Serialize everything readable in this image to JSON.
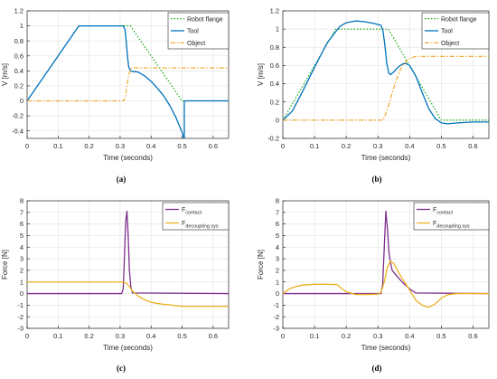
{
  "figure": {
    "captions": [
      "(a)",
      "(b)",
      "(c)",
      "(d)"
    ]
  },
  "colors": {
    "robot_flange": "#00a000",
    "tool": "#0072bd",
    "object": "#f0a020",
    "contact": "#7e2f8e",
    "decoupling": "#edb120",
    "grid": "#e6e6e6",
    "axis": "#262626"
  },
  "chart_data": [
    {
      "id": "a",
      "type": "line",
      "caption": "(a)",
      "xlabel": "Time (seconds)",
      "ylabel": "V [m/s]",
      "xlim": [
        0,
        0.65
      ],
      "ylim": [
        -0.5,
        1.2
      ],
      "xticks": [
        0,
        0.1,
        0.2,
        0.3,
        0.4,
        0.5,
        0.6
      ],
      "xtick_labels": [
        "0",
        "0.1",
        "0.2",
        "0.3",
        "0.4",
        "0.5",
        "0.6"
      ],
      "yticks": [
        -0.4,
        -0.2,
        0,
        0.2,
        0.4,
        0.6,
        0.8,
        1,
        1.2
      ],
      "ytick_labels": [
        "-0.4",
        "-0.2",
        "0",
        "0.2",
        "0.4",
        "0.6",
        "0.8",
        "1",
        "1.2"
      ],
      "grid": true,
      "legend_position": "top-right",
      "series": [
        {
          "name": "Robot flange",
          "color": "#00a000",
          "style": "dotted",
          "x": [
            0,
            0.167,
            0.333,
            0.5,
            0.65
          ],
          "y": [
            0,
            1,
            1,
            0,
            0
          ]
        },
        {
          "name": "Tool",
          "color": "#0072bd",
          "style": "solid",
          "x": [
            0,
            0.167,
            0.31,
            0.316,
            0.32,
            0.324,
            0.328,
            0.334,
            0.34,
            0.35,
            0.36,
            0.38,
            0.4,
            0.42,
            0.44,
            0.46,
            0.48,
            0.5,
            0.505,
            0.507,
            0.507,
            0.65
          ],
          "y": [
            0,
            1,
            1,
            0.95,
            0.78,
            0.58,
            0.45,
            0.4,
            0.39,
            0.39,
            0.38,
            0.33,
            0.26,
            0.17,
            0.07,
            -0.06,
            -0.22,
            -0.42,
            -0.49,
            -0.5,
            0,
            0
          ]
        },
        {
          "name": "Object",
          "color": "#f0a020",
          "style": "dashdot",
          "x": [
            0,
            0.31,
            0.316,
            0.32,
            0.325,
            0.33,
            0.335,
            0.34,
            0.65
          ],
          "y": [
            0,
            0,
            0.03,
            0.14,
            0.28,
            0.38,
            0.43,
            0.44,
            0.44
          ]
        }
      ]
    },
    {
      "id": "b",
      "type": "line",
      "caption": "(b)",
      "xlabel": "Time (seconds)",
      "ylabel": "V [m/s]",
      "xlim": [
        0,
        0.65
      ],
      "ylim": [
        -0.2,
        1.2
      ],
      "xticks": [
        0,
        0.1,
        0.2,
        0.3,
        0.4,
        0.5,
        0.6
      ],
      "xtick_labels": [
        "0",
        "0.1",
        "0.2",
        "0.3",
        "0.4",
        "0.5",
        "0.6"
      ],
      "yticks": [
        -0.2,
        0,
        0.2,
        0.4,
        0.6,
        0.8,
        1,
        1.2
      ],
      "ytick_labels": [
        "-0.2",
        "0",
        "0.2",
        "0.4",
        "0.6",
        "0.8",
        "1",
        "1.2"
      ],
      "grid": true,
      "legend_position": "top-right",
      "series": [
        {
          "name": "Robot flange",
          "color": "#00a000",
          "style": "dotted",
          "x": [
            0,
            0.167,
            0.333,
            0.5,
            0.65
          ],
          "y": [
            0,
            1,
            1,
            0,
            0
          ]
        },
        {
          "name": "Tool",
          "color": "#0072bd",
          "style": "solid",
          "x": [
            0,
            0.03,
            0.06,
            0.1,
            0.14,
            0.18,
            0.2,
            0.23,
            0.26,
            0.29,
            0.31,
            0.316,
            0.322,
            0.328,
            0.334,
            0.34,
            0.35,
            0.36,
            0.37,
            0.38,
            0.39,
            0.4,
            0.42,
            0.44,
            0.46,
            0.48,
            0.5,
            0.52,
            0.55,
            0.6,
            0.65
          ],
          "y": [
            0,
            0.1,
            0.3,
            0.58,
            0.85,
            1.03,
            1.07,
            1.09,
            1.08,
            1.06,
            1.04,
            0.98,
            0.82,
            0.62,
            0.52,
            0.5,
            0.53,
            0.57,
            0.6,
            0.62,
            0.62,
            0.6,
            0.48,
            0.3,
            0.13,
            0.02,
            -0.03,
            -0.04,
            -0.03,
            -0.02,
            -0.02
          ]
        },
        {
          "name": "Object",
          "color": "#f0a020",
          "style": "dashdot",
          "x": [
            0,
            0.315,
            0.32,
            0.33,
            0.34,
            0.35,
            0.36,
            0.37,
            0.38,
            0.39,
            0.4,
            0.42,
            0.65
          ],
          "y": [
            0,
            0,
            0.03,
            0.12,
            0.24,
            0.36,
            0.46,
            0.55,
            0.61,
            0.65,
            0.68,
            0.7,
            0.7
          ]
        }
      ]
    },
    {
      "id": "c",
      "type": "line",
      "caption": "(c)",
      "xlabel": "Time (seconds)",
      "ylabel": "Force [N]",
      "xlim": [
        0,
        0.65
      ],
      "ylim": [
        -3,
        8
      ],
      "xticks": [
        0,
        0.1,
        0.2,
        0.3,
        0.4,
        0.5,
        0.6
      ],
      "xtick_labels": [
        "0",
        "0.1",
        "0.2",
        "0.3",
        "0.4",
        "0.5",
        "0.6"
      ],
      "yticks": [
        -3,
        -2,
        -1,
        0,
        1,
        2,
        3,
        4,
        5,
        6,
        7,
        8
      ],
      "ytick_labels": [
        "-3",
        "-2",
        "-1",
        "0",
        "1",
        "2",
        "3",
        "4",
        "5",
        "6",
        "7",
        "8"
      ],
      "grid": true,
      "legend_position": "top-right",
      "series": [
        {
          "name": "F",
          "subscript": "contact",
          "color": "#7e2f8e",
          "style": "solid",
          "x": [
            0,
            0.305,
            0.31,
            0.314,
            0.318,
            0.322,
            0.326,
            0.33,
            0.335,
            0.34,
            0.65
          ],
          "y": [
            0,
            0,
            0.4,
            3.2,
            6.2,
            7.1,
            5.0,
            2.0,
            0.5,
            0.05,
            0
          ]
        },
        {
          "name": "F",
          "subscript": "decoupling sys",
          "color": "#edb120",
          "style": "solid",
          "x": [
            0,
            0.31,
            0.32,
            0.33,
            0.34,
            0.36,
            0.38,
            0.4,
            0.42,
            0.44,
            0.46,
            0.48,
            0.5,
            0.65
          ],
          "y": [
            1,
            1,
            0.9,
            0.6,
            0.2,
            -0.25,
            -0.55,
            -0.75,
            -0.85,
            -0.92,
            -0.97,
            -1.05,
            -1.1,
            -1.1
          ]
        }
      ]
    },
    {
      "id": "d",
      "type": "line",
      "caption": "(d)",
      "xlabel": "Time (seconds)",
      "ylabel": "Force [N]",
      "xlim": [
        0,
        0.65
      ],
      "ylim": [
        -3,
        8
      ],
      "xticks": [
        0,
        0.1,
        0.2,
        0.3,
        0.4,
        0.5,
        0.6
      ],
      "xtick_labels": [
        "0",
        "0.1",
        "0.2",
        "0.3",
        "0.4",
        "0.5",
        "0.6"
      ],
      "yticks": [
        -3,
        -2,
        -1,
        0,
        1,
        2,
        3,
        4,
        5,
        6,
        7,
        8
      ],
      "ytick_labels": [
        "-3",
        "-2",
        "-1",
        "0",
        "1",
        "2",
        "3",
        "4",
        "5",
        "6",
        "7",
        "8"
      ],
      "grid": true,
      "legend_position": "top-right",
      "series": [
        {
          "name": "F",
          "subscript": "contact",
          "color": "#7e2f8e",
          "style": "solid",
          "x": [
            0,
            0.31,
            0.315,
            0.32,
            0.325,
            0.33,
            0.335,
            0.34,
            0.345,
            0.36,
            0.38,
            0.4,
            0.42,
            0.65
          ],
          "y": [
            0,
            0,
            0.8,
            4.0,
            7.1,
            5.6,
            3.5,
            2.6,
            2.0,
            1.5,
            0.9,
            0.4,
            0.05,
            0
          ]
        },
        {
          "name": "F",
          "subscript": "decoupling sys",
          "color": "#edb120",
          "style": "solid",
          "x": [
            0,
            0.02,
            0.04,
            0.06,
            0.1,
            0.14,
            0.17,
            0.18,
            0.2,
            0.23,
            0.27,
            0.3,
            0.31,
            0.32,
            0.33,
            0.34,
            0.35,
            0.37,
            0.4,
            0.42,
            0.44,
            0.46,
            0.48,
            0.5,
            0.52,
            0.55,
            0.6,
            0.65
          ],
          "y": [
            0,
            0.4,
            0.6,
            0.72,
            0.8,
            0.8,
            0.78,
            0.55,
            0.15,
            -0.08,
            -0.08,
            -0.05,
            0.1,
            1.0,
            2.3,
            2.8,
            2.6,
            1.6,
            0.3,
            -0.6,
            -1.0,
            -1.2,
            -0.9,
            -0.4,
            -0.1,
            0,
            0,
            0
          ]
        }
      ]
    }
  ]
}
